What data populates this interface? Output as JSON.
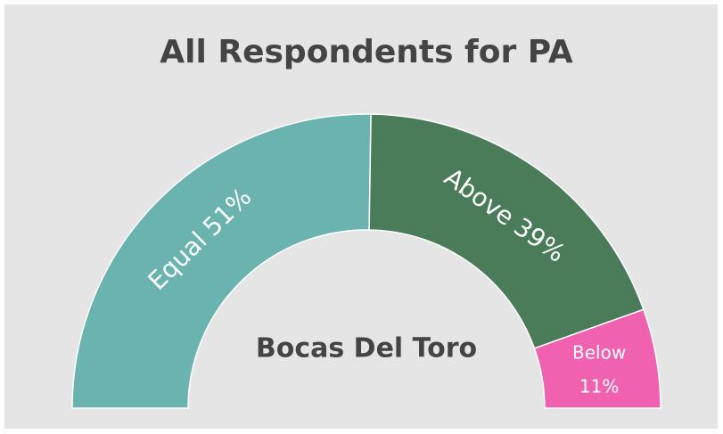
{
  "chart_data": {
    "type": "pie",
    "title": "All Respondents for PA",
    "center_label": "Bocas Del Toro",
    "categories": [
      "Equal",
      "Above",
      "Below"
    ],
    "values": [
      51,
      39,
      11
    ],
    "value_labels": [
      "51%",
      "39%",
      "11%"
    ],
    "colors": [
      "#6ab3ae",
      "#4a7c59",
      "#f062b0"
    ]
  }
}
